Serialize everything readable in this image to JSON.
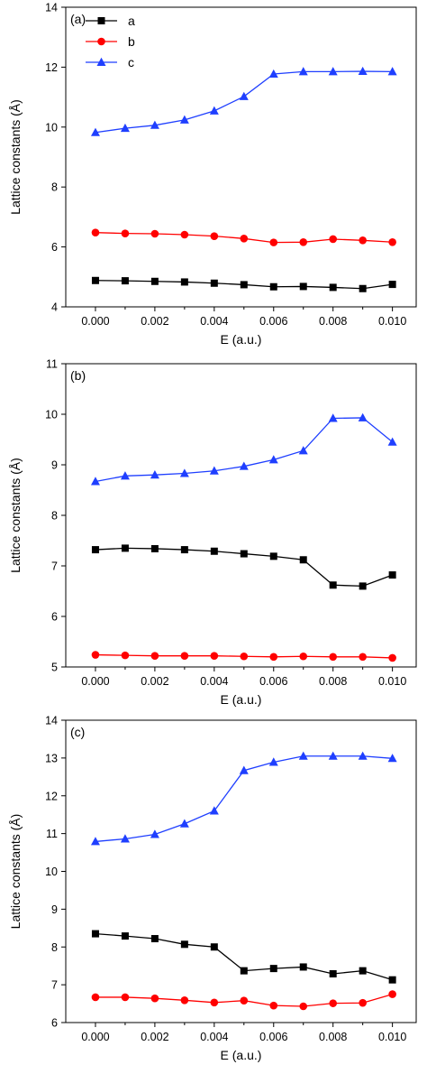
{
  "colors": {
    "a": "#000000",
    "b": "#ff0000",
    "c": "#1f3fff"
  },
  "chart_data": [
    {
      "type": "line",
      "panel_label": "(a)",
      "xlabel": "E (a.u.)",
      "ylabel": "Lattice constants (Å)",
      "xlim": [
        -0.001,
        0.0108
      ],
      "ylim": [
        4,
        14
      ],
      "xticks": [
        "0.000",
        "0.002",
        "0.004",
        "0.006",
        "0.008",
        "0.010"
      ],
      "yticks": [
        "4",
        "6",
        "8",
        "10",
        "12",
        "14"
      ],
      "legend": "top-left",
      "x": [
        0.0,
        0.001,
        0.002,
        0.003,
        0.004,
        0.005,
        0.006,
        0.007,
        0.008,
        0.009,
        0.01
      ],
      "series": [
        {
          "name": "a",
          "marker": "square",
          "values": [
            4.88,
            4.87,
            4.85,
            4.83,
            4.79,
            4.74,
            4.67,
            4.68,
            4.65,
            4.61,
            4.75
          ]
        },
        {
          "name": "b",
          "marker": "circle",
          "values": [
            6.48,
            6.45,
            6.44,
            6.41,
            6.36,
            6.28,
            6.15,
            6.16,
            6.26,
            6.22,
            6.16
          ]
        },
        {
          "name": "c",
          "marker": "triangle",
          "values": [
            9.82,
            9.96,
            10.06,
            10.24,
            10.54,
            11.02,
            11.77,
            11.85,
            11.85,
            11.86,
            11.85
          ]
        }
      ]
    },
    {
      "type": "line",
      "panel_label": "(b)",
      "xlabel": "E (a.u.)",
      "ylabel": "Lattice constants (Å)",
      "xlim": [
        -0.001,
        0.0108
      ],
      "ylim": [
        5,
        11
      ],
      "xticks": [
        "0.000",
        "0.002",
        "0.004",
        "0.006",
        "0.008",
        "0.010"
      ],
      "yticks": [
        "5",
        "6",
        "7",
        "8",
        "9",
        "10",
        "11"
      ],
      "x": [
        0.0,
        0.001,
        0.002,
        0.003,
        0.004,
        0.005,
        0.006,
        0.007,
        0.008,
        0.009,
        0.01
      ],
      "series": [
        {
          "marker": "square",
          "values": [
            7.32,
            7.35,
            7.34,
            7.32,
            7.29,
            7.24,
            7.19,
            7.12,
            6.62,
            6.6,
            6.82
          ]
        },
        {
          "marker": "circle",
          "values": [
            5.24,
            5.23,
            5.22,
            5.22,
            5.22,
            5.21,
            5.2,
            5.21,
            5.2,
            5.2,
            5.18
          ]
        },
        {
          "marker": "triangle",
          "values": [
            8.67,
            8.78,
            8.8,
            8.83,
            8.88,
            8.97,
            9.1,
            9.28,
            9.92,
            9.93,
            9.45
          ]
        }
      ]
    },
    {
      "type": "line",
      "panel_label": "(c)",
      "xlabel": "E (a.u.)",
      "ylabel": "Lattice constants (Å)",
      "xlim": [
        -0.001,
        0.0108
      ],
      "ylim": [
        6,
        14
      ],
      "xticks": [
        "0.000",
        "0.002",
        "0.004",
        "0.006",
        "0.008",
        "0.010"
      ],
      "yticks": [
        "6",
        "7",
        "8",
        "9",
        "10",
        "11",
        "12",
        "13",
        "14"
      ],
      "x": [
        0.0,
        0.001,
        0.002,
        0.003,
        0.004,
        0.005,
        0.006,
        0.007,
        0.008,
        0.009,
        0.01
      ],
      "series": [
        {
          "marker": "square",
          "values": [
            8.35,
            8.29,
            8.22,
            8.07,
            8.0,
            7.37,
            7.43,
            7.47,
            7.29,
            7.37,
            7.13
          ]
        },
        {
          "marker": "circle",
          "values": [
            6.67,
            6.67,
            6.64,
            6.59,
            6.53,
            6.58,
            6.45,
            6.43,
            6.51,
            6.52,
            6.75
          ]
        },
        {
          "marker": "triangle",
          "values": [
            10.79,
            10.86,
            10.98,
            11.26,
            11.6,
            12.67,
            12.89,
            13.05,
            13.05,
            13.05,
            12.99
          ]
        }
      ]
    }
  ]
}
